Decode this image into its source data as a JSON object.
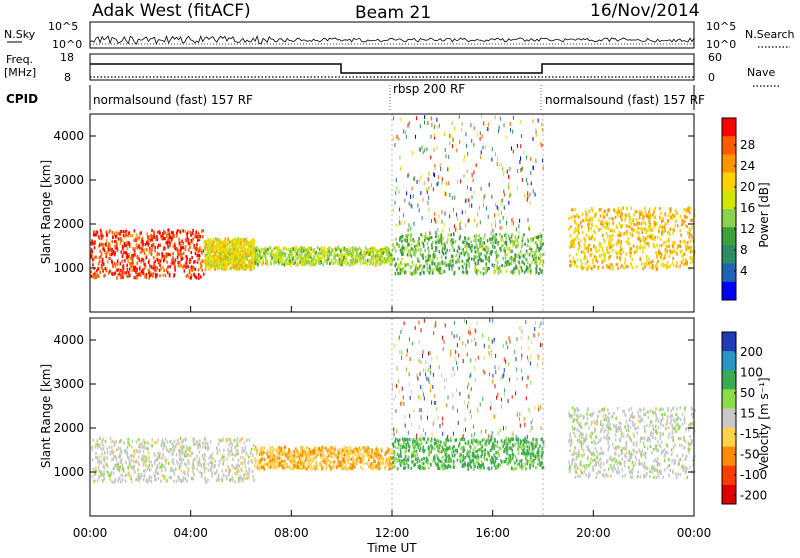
{
  "header": {
    "station": "Adak West (fitACF)",
    "beam": "Beam 21",
    "date": "16/Nov/2014"
  },
  "top_panels": {
    "nsky_label": "N.Sky",
    "nsearch_label": "N.Search",
    "noise_ticks": [
      "10^5",
      "10^0"
    ],
    "freq_label": "Freq.",
    "freq_unit": "[MHz]",
    "freq_ticks": [
      "18",
      "8"
    ],
    "nave_label": "Nave",
    "nave_ticks": [
      "60",
      "0"
    ],
    "cpid_label": "CPID",
    "cpid_segments": [
      {
        "name": "normalsound (fast) 157 RF",
        "start_hour": 0,
        "end_hour": 12
      },
      {
        "name": "rbsp 200 RF",
        "start_hour": 12,
        "end_hour": 18
      },
      {
        "name": "normalsound (fast) 157 RF",
        "start_hour": 18,
        "end_hour": 24
      }
    ]
  },
  "axes": {
    "ylabel": "Slant Range [km]",
    "xlabel": "Time UT",
    "x_ticks": [
      "00:00",
      "04:00",
      "08:00",
      "12:00",
      "16:00",
      "20:00",
      "00:00"
    ],
    "y_ticks": [
      "1000",
      "2000",
      "3000",
      "4000"
    ]
  },
  "power_bar": {
    "label": "Power [dB]",
    "ticks": [
      "28",
      "24",
      "20",
      "16",
      "12",
      "8",
      "4"
    ],
    "colors": [
      "#ff0000",
      "#ff5a00",
      "#ff9600",
      "#ffd200",
      "#d2e600",
      "#8cd24b",
      "#3ca03c",
      "#2d8c64",
      "#1e64b4",
      "#0000ff"
    ]
  },
  "velocity_bar": {
    "label": "Velocity [m s⁻¹]",
    "ticks": [
      "200",
      "100",
      "50",
      "15",
      "-15",
      "-50",
      "-100",
      "-200"
    ],
    "colors": [
      "#1e3cb4",
      "#2896c8",
      "#3caa50",
      "#8cdc46",
      "#c8c8c8",
      "#ffd24b",
      "#ff8c00",
      "#ff3c00",
      "#dc0000"
    ]
  },
  "chart_data": [
    {
      "type": "heatmap",
      "title": "Power [dB]",
      "xlabel": "Time UT",
      "ylabel": "Slant Range [km]",
      "xlim": [
        0,
        24
      ],
      "ylim": [
        0,
        4500
      ],
      "clim": [
        0,
        30
      ],
      "regions": [
        {
          "time": [
            0,
            4.5
          ],
          "range": [
            800,
            1900
          ],
          "value": 27
        },
        {
          "time": [
            4.5,
            6.5
          ],
          "range": [
            1000,
            1700
          ],
          "value": 18
        },
        {
          "time": [
            6.5,
            12
          ],
          "range": [
            1100,
            1500
          ],
          "value": 15
        },
        {
          "time": [
            12,
            18
          ],
          "range": [
            900,
            1800
          ],
          "value": 12
        },
        {
          "time": [
            19,
            24
          ],
          "range": [
            1000,
            2400
          ],
          "value": 20
        }
      ]
    },
    {
      "type": "heatmap",
      "title": "Velocity [m s⁻¹]",
      "xlabel": "Time UT",
      "ylabel": "Slant Range [km]",
      "xlim": [
        0,
        24
      ],
      "ylim": [
        0,
        4500
      ],
      "clim": [
        -200,
        200
      ],
      "regions": [
        {
          "time": [
            0,
            6.5
          ],
          "range": [
            800,
            1800
          ],
          "value": 0
        },
        {
          "time": [
            6.5,
            12
          ],
          "range": [
            1100,
            1600
          ],
          "value": -60
        },
        {
          "time": [
            12,
            18
          ],
          "range": [
            1100,
            1800
          ],
          "value": 80
        },
        {
          "time": [
            19,
            24
          ],
          "range": [
            900,
            2500
          ],
          "value": 5
        }
      ]
    }
  ]
}
